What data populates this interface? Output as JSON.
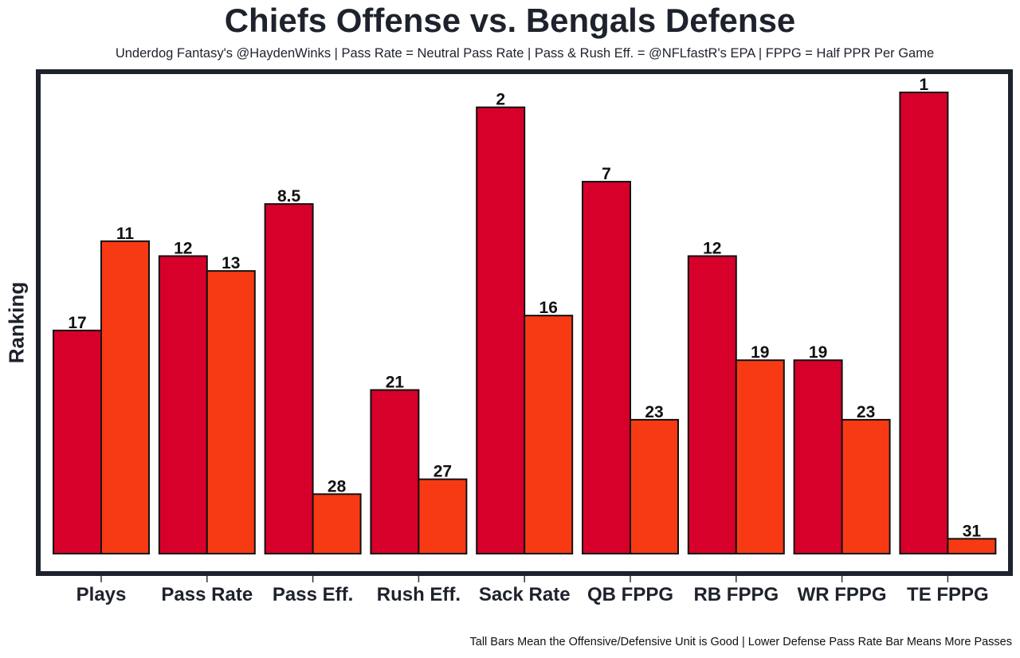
{
  "chart_data": {
    "type": "bar",
    "title": "Chiefs Offense vs. Bengals Defense",
    "subtitle": "Underdog Fantasy's @HaydenWinks | Pass Rate = Neutral Pass Rate | Pass & Rush Eff. = @NFLfastR's EPA | FPPG = Half PPR Per Game",
    "caption": "Tall Bars Mean the Offensive/Defensive Unit is Good | Lower Defense Pass Rate Bar Means More Passes",
    "xlabel": "",
    "ylabel": "Ranking",
    "value_meaning": "rank (1 = best; taller bar = better rank)",
    "rank_range": [
      1,
      32
    ],
    "categories": [
      "Plays",
      "Pass Rate",
      "Pass Eff.",
      "Rush Eff.",
      "Sack Rate",
      "QB FPPG",
      "RB FPPG",
      "WR FPPG",
      "TE FPPG"
    ],
    "series": [
      {
        "name": "Chiefs Offense",
        "color": "#d7002a",
        "values": [
          17,
          12,
          8.5,
          21,
          2,
          7,
          12,
          19,
          1
        ]
      },
      {
        "name": "Bengals Defense",
        "color": "#f73a14",
        "values": [
          11,
          13,
          28,
          27,
          16,
          23,
          19,
          23,
          31
        ]
      }
    ],
    "value_labels": {
      "offense": [
        "17",
        "12",
        "8.5",
        "21",
        "2",
        "7",
        "12",
        "19",
        "1"
      ],
      "defense": [
        "11",
        "13",
        "28",
        "27",
        "16",
        "23",
        "19",
        "23",
        "31"
      ]
    },
    "grid": false,
    "legend": "none",
    "frame_color": "#1e222c"
  }
}
